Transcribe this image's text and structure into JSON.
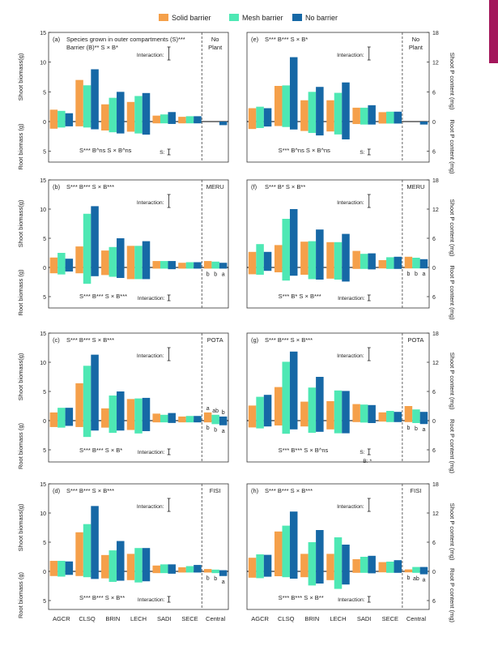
{
  "legend": {
    "items": [
      {
        "label": "Solid barrier",
        "color": "#f5a04a"
      },
      {
        "label": "Mesh barrier",
        "color": "#4ee8b4"
      },
      {
        "label": "No barrier",
        "color": "#1668a6"
      }
    ]
  },
  "colors": {
    "solid": "#f5a04a",
    "mesh": "#4ee8b4",
    "none": "#1668a6",
    "edge_tab": "#a3165b"
  },
  "x_tick_labels": [
    "AGCR",
    "CLSQ",
    "BRIN",
    "LECH",
    "SADI",
    "SECE",
    "Central"
  ],
  "axis_titles": {
    "left_top": "Shoot biomass(g)",
    "left_bottom": "Root biomass (g)",
    "right_top": "Shoot P content (mg)",
    "right_bottom": "Root P content (mg)"
  },
  "chart_data": [
    {
      "panel": "(a)",
      "type": "bar",
      "region_label": "No Plant",
      "categories": [
        "AGCR",
        "CLSQ",
        "BRIN",
        "LECH",
        "SADI",
        "SECE",
        "Central"
      ],
      "y_ticks_above": [
        "15",
        "10",
        "5",
        "0"
      ],
      "y_ticks_below": [
        "5"
      ],
      "ylim": [
        -6,
        15
      ],
      "series": [
        {
          "name": "Solid barrier",
          "shoot": [
            2.0,
            7.0,
            2.9,
            3.3,
            1.0,
            0.8,
            0.0
          ],
          "root": [
            1.2,
            0.8,
            1.5,
            1.7,
            0.3,
            0.3,
            0.0
          ]
        },
        {
          "name": "Mesh barrier",
          "shoot": [
            1.8,
            6.1,
            4.0,
            4.3,
            1.2,
            0.9,
            0.0
          ],
          "root": [
            1.0,
            1.0,
            1.8,
            2.0,
            0.3,
            0.3,
            0.0
          ]
        },
        {
          "name": "No barrier",
          "shoot": [
            1.4,
            8.8,
            5.0,
            4.8,
            1.6,
            0.9,
            0.0
          ],
          "root": [
            0.8,
            1.3,
            2.0,
            2.2,
            0.4,
            0.3,
            0.6
          ]
        }
      ],
      "annotations": {
        "header": [
          "Species grown in outer compartments (S)***",
          "Barrier (B)**  S × B*"
        ],
        "interaction": "Interaction:",
        "root_stats": "S***  B^ns  S × B^ns",
        "root_interaction": "S:",
        "central_top": [],
        "central_bottom": []
      }
    },
    {
      "panel": "(e)",
      "type": "bar",
      "region_label": "No Plant",
      "categories": [
        "AGCR",
        "CLSQ",
        "BRIN",
        "LECH",
        "SADI",
        "SECE",
        "Central"
      ],
      "y_ticks_above": [
        "18",
        "12",
        "6",
        "0"
      ],
      "y_ticks_below": [
        "6"
      ],
      "ylim": [
        -7.2,
        18
      ],
      "series": [
        {
          "name": "Solid barrier",
          "shoot": [
            2.7,
            7.2,
            4.3,
            4.3,
            2.8,
            1.9,
            0.0
          ],
          "root": [
            1.5,
            0.9,
            1.9,
            2.0,
            0.5,
            0.4,
            0.0
          ]
        },
        {
          "name": "Mesh barrier",
          "shoot": [
            3.0,
            7.3,
            6.0,
            5.8,
            2.8,
            2.0,
            0.0
          ],
          "root": [
            1.3,
            1.1,
            2.3,
            2.6,
            0.6,
            0.4,
            0.0
          ]
        },
        {
          "name": "No barrier",
          "shoot": [
            2.7,
            13.0,
            7.0,
            7.9,
            3.3,
            2.0,
            0.0
          ],
          "root": [
            1.0,
            1.6,
            2.8,
            3.6,
            0.6,
            0.4,
            0.6
          ]
        }
      ],
      "annotations": {
        "header": [
          "S***  B***  S × B*"
        ],
        "interaction": "Interaction:",
        "root_stats": "S***  B^ns  S × B^ns",
        "root_interaction": "S:",
        "central_top": [],
        "central_bottom": []
      }
    },
    {
      "panel": "(b)",
      "type": "bar",
      "region_label": "MERU",
      "categories": [
        "AGCR",
        "CLSQ",
        "BRIN",
        "LECH",
        "SADI",
        "SECE",
        "Central"
      ],
      "y_ticks_above": [
        "15",
        "10",
        "5",
        "0"
      ],
      "y_ticks_below": [
        "5"
      ],
      "ylim": [
        -6,
        15
      ],
      "series": [
        {
          "name": "Solid barrier",
          "shoot": [
            1.7,
            3.6,
            2.9,
            3.7,
            1.1,
            0.8,
            1.1
          ],
          "root": [
            1.0,
            1.0,
            1.3,
            2.0,
            0.2,
            0.2,
            0.2
          ]
        },
        {
          "name": "Mesh barrier",
          "shoot": [
            2.5,
            9.2,
            3.5,
            3.7,
            1.1,
            0.9,
            1.0
          ],
          "root": [
            1.2,
            2.8,
            1.6,
            2.0,
            0.2,
            0.2,
            0.2
          ]
        },
        {
          "name": "No barrier",
          "shoot": [
            1.5,
            10.5,
            5.0,
            4.5,
            1.1,
            0.9,
            0.8
          ],
          "root": [
            0.7,
            1.5,
            1.8,
            2.0,
            0.3,
            0.2,
            0.2
          ]
        }
      ],
      "annotations": {
        "header": [
          "S***  B***  S × B***"
        ],
        "interaction": "Interaction:",
        "root_stats": "S***  B***  S × B***",
        "root_interaction": "Interaction:",
        "central_top": [],
        "central_bottom": [
          "b",
          "b",
          "a"
        ]
      }
    },
    {
      "panel": "(f)",
      "type": "bar",
      "region_label": "MERU",
      "categories": [
        "AGCR",
        "CLSQ",
        "BRIN",
        "LECH",
        "SADI",
        "SECE",
        "Central"
      ],
      "y_ticks_above": [
        "18",
        "12",
        "6",
        "0"
      ],
      "y_ticks_below": [
        "6"
      ],
      "ylim": [
        -7.2,
        18
      ],
      "series": [
        {
          "name": "Solid barrier",
          "shoot": [
            3.2,
            4.6,
            5.3,
            5.2,
            3.4,
            1.5,
            2.2
          ],
          "root": [
            1.4,
            1.0,
            1.5,
            2.3,
            0.3,
            0.2,
            0.2
          ]
        },
        {
          "name": "Mesh barrier",
          "shoot": [
            4.8,
            10.0,
            5.4,
            5.2,
            2.8,
            2.1,
            2.0
          ],
          "root": [
            1.5,
            2.7,
            2.4,
            2.5,
            0.3,
            0.3,
            0.2
          ]
        },
        {
          "name": "No barrier",
          "shoot": [
            3.2,
            12.0,
            7.8,
            6.9,
            2.9,
            2.2,
            1.7
          ],
          "root": [
            0.7,
            1.7,
            2.5,
            2.9,
            0.4,
            0.3,
            0.2
          ]
        }
      ],
      "annotations": {
        "header": [
          "S***  B*  S × B**"
        ],
        "interaction": "Interaction:",
        "root_stats": "S***  B*  S × B***",
        "root_interaction": "Interaction:",
        "central_top": [],
        "central_bottom": [
          "b",
          "b",
          "a"
        ]
      }
    },
    {
      "panel": "(c)",
      "type": "bar",
      "region_label": "POTA",
      "categories": [
        "AGCR",
        "CLSQ",
        "BRIN",
        "LECH",
        "SADI",
        "SECE",
        "Central"
      ],
      "y_ticks_above": [
        "15",
        "10",
        "5",
        "0"
      ],
      "y_ticks_below": [
        "5"
      ],
      "ylim": [
        -6,
        15
      ],
      "series": [
        {
          "name": "Solid barrier",
          "shoot": [
            1.4,
            6.4,
            2.1,
            3.7,
            1.2,
            0.7,
            1.4
          ],
          "root": [
            1.1,
            1.1,
            1.2,
            1.6,
            0.3,
            0.3,
            0.3
          ]
        },
        {
          "name": "Mesh barrier",
          "shoot": [
            2.2,
            9.4,
            4.3,
            3.8,
            1.0,
            0.8,
            1.0
          ],
          "root": [
            1.2,
            2.8,
            2.1,
            2.2,
            0.3,
            0.3,
            0.6
          ]
        },
        {
          "name": "No barrier",
          "shoot": [
            2.2,
            11.3,
            5.0,
            3.9,
            1.3,
            0.8,
            0.7
          ],
          "root": [
            0.9,
            1.7,
            1.7,
            1.8,
            0.4,
            0.3,
            0.8
          ]
        }
      ],
      "annotations": {
        "header": [
          "S***  B***  S × B***"
        ],
        "interaction": "Interaction:",
        "root_stats": "S***  B***  S × B*",
        "root_interaction": "Interaction:",
        "central_top": [
          "a",
          "ab",
          "b"
        ],
        "central_bottom": [
          "b",
          "b",
          "a"
        ]
      }
    },
    {
      "panel": "(g)",
      "type": "bar",
      "region_label": "POTA",
      "categories": [
        "AGCR",
        "CLSQ",
        "BRIN",
        "LECH",
        "SADI",
        "SECE",
        "Central"
      ],
      "y_ticks_above": [
        "18",
        "12",
        "6",
        "0"
      ],
      "y_ticks_below": [
        "6"
      ],
      "ylim": [
        -7.2,
        18
      ],
      "series": [
        {
          "name": "Solid barrier",
          "shoot": [
            3.1,
            6.9,
            3.9,
            4.0,
            3.4,
            1.7,
            3.0
          ],
          "root": [
            1.4,
            1.0,
            1.2,
            1.8,
            0.3,
            0.2,
            0.3
          ]
        },
        {
          "name": "Mesh barrier",
          "shoot": [
            4.9,
            12.1,
            6.8,
            6.2,
            3.3,
            2.0,
            2.3
          ],
          "root": [
            1.6,
            2.7,
            2.5,
            2.6,
            0.4,
            0.3,
            0.5
          ]
        },
        {
          "name": "No barrier",
          "shoot": [
            5.3,
            14.2,
            9.0,
            6.1,
            3.2,
            1.8,
            1.8
          ],
          "root": [
            1.2,
            1.8,
            2.3,
            2.6,
            0.5,
            0.3,
            0.7
          ]
        }
      ],
      "annotations": {
        "header": [
          "S***  B***  S × B***"
        ],
        "interaction": "Interaction:",
        "root_stats": "S***  B***  S × B^ns",
        "root_interaction": "S:",
        "root_extra": "B: *",
        "central_top": [],
        "central_bottom": [
          "b",
          "b",
          "a"
        ]
      }
    },
    {
      "panel": "(d)",
      "type": "bar",
      "region_label": "FISI",
      "categories": [
        "AGCR",
        "CLSQ",
        "BRIN",
        "LECH",
        "SADI",
        "SECE",
        "Central"
      ],
      "y_ticks_above": [
        "15",
        "10",
        "5",
        "0"
      ],
      "y_ticks_below": [
        "5"
      ],
      "ylim": [
        -6,
        15
      ],
      "series": [
        {
          "name": "Solid barrier",
          "shoot": [
            1.8,
            6.7,
            2.8,
            3.0,
            1.0,
            0.7,
            0.4
          ],
          "root": [
            0.8,
            0.8,
            1.2,
            1.5,
            0.3,
            0.2,
            0.2
          ]
        },
        {
          "name": "Mesh barrier",
          "shoot": [
            1.8,
            8.1,
            3.6,
            4.0,
            1.2,
            0.9,
            0.3
          ],
          "root": [
            0.9,
            1.0,
            1.8,
            1.9,
            0.3,
            0.2,
            0.3
          ]
        },
        {
          "name": "No barrier",
          "shoot": [
            1.7,
            11.2,
            5.2,
            4.0,
            1.2,
            1.1,
            0.2
          ],
          "root": [
            0.6,
            1.3,
            1.6,
            1.7,
            0.4,
            0.2,
            0.8
          ]
        }
      ],
      "annotations": {
        "header": [
          "S***  B***  S × B***"
        ],
        "interaction": "Interaction:",
        "root_stats": "S***  B***  S × B**",
        "root_interaction": "Interaction:",
        "central_top": [],
        "central_bottom": [
          "b",
          "b",
          "a"
        ]
      }
    },
    {
      "panel": "(h)",
      "type": "bar",
      "region_label": "FISI",
      "categories": [
        "AGCR",
        "CLSQ",
        "BRIN",
        "LECH",
        "SADI",
        "SECE",
        "Central"
      ],
      "y_ticks_above": [
        "18",
        "12",
        "6",
        "0"
      ],
      "y_ticks_below": [
        "6"
      ],
      "ylim": [
        -7.2,
        18
      ],
      "series": [
        {
          "name": "Solid barrier",
          "shoot": [
            2.8,
            8.2,
            3.6,
            3.6,
            2.5,
            1.9,
            0.4
          ],
          "root": [
            1.3,
            1.0,
            1.2,
            1.8,
            0.3,
            0.2,
            0.2
          ]
        },
        {
          "name": "Mesh barrier",
          "shoot": [
            3.5,
            9.4,
            6.0,
            7.0,
            3.0,
            2.0,
            0.9
          ],
          "root": [
            1.4,
            1.2,
            2.9,
            3.6,
            0.3,
            0.3,
            0.3
          ]
        },
        {
          "name": "No barrier",
          "shoot": [
            3.4,
            12.3,
            8.5,
            5.5,
            3.2,
            2.3,
            0.9
          ],
          "root": [
            1.1,
            1.5,
            2.5,
            2.7,
            0.4,
            0.3,
            0.6
          ]
        }
      ],
      "annotations": {
        "header": [
          "S***  B***  S × B***"
        ],
        "interaction": "Interaction:",
        "root_stats": "S***  B***  S × B**",
        "root_interaction": "Interaction:",
        "central_top": [],
        "central_bottom": [
          "b",
          "ab",
          "a"
        ]
      }
    }
  ]
}
